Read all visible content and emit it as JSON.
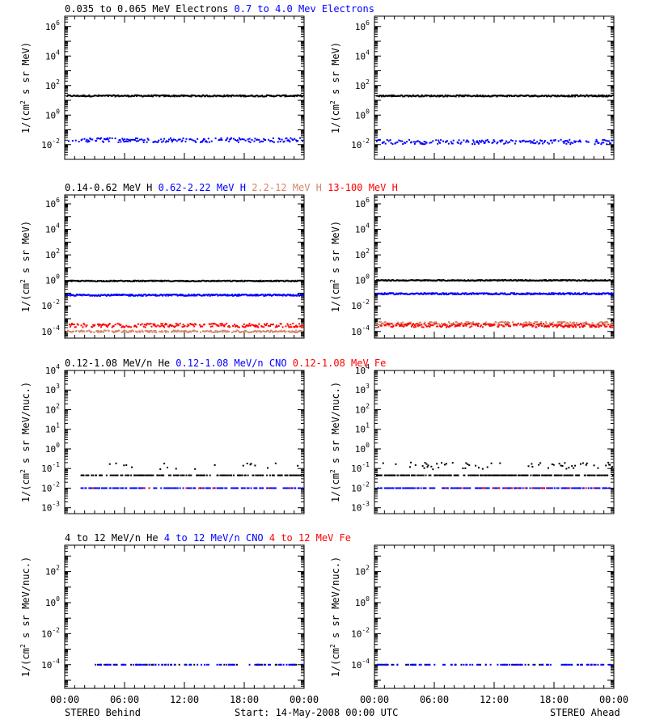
{
  "colors": {
    "black": "#000000",
    "blue": "#0000ff",
    "salmon": "#d2876e",
    "red": "#ff0000",
    "axis": "#000000"
  },
  "footer": {
    "left": "STEREO Behind",
    "center": "Start: 14-May-2008 00:00 UTC",
    "right": "STEREO Ahead"
  },
  "x_ticks": [
    "00:00",
    "06:00",
    "12:00",
    "18:00",
    "00:00"
  ],
  "chart_data": [
    {
      "type": "scatter",
      "row": 1,
      "col": 1,
      "spacecraft": "STEREO Behind",
      "ylabel_base": "1/(cm",
      "ylabel_sup": "2",
      "ylabel_rest": " s sr MeV)",
      "yscale": "log",
      "ylim": [
        0.001,
        5000000
      ],
      "yticks": [
        {
          "e": -2
        },
        {
          "e": 0
        },
        {
          "e": 2
        },
        {
          "e": 4
        },
        {
          "e": 6
        }
      ],
      "legend": [
        {
          "label": "0.035 to 0.065 MeV Electrons",
          "color": "black"
        },
        {
          "label": "0.7 to 4.0 Mev Electrons",
          "color": "blue"
        }
      ],
      "series": [
        {
          "name": "0.035 to 0.065 MeV Electrons",
          "color": "black",
          "level": 20,
          "spread": 0.05,
          "density": 1.0,
          "gap": 0
        },
        {
          "name": "0.7 to 4.0 Mev Electrons",
          "color": "blue",
          "level": 0.02,
          "spread": 0.15,
          "density": 0.6,
          "gap": 0
        }
      ]
    },
    {
      "type": "scatter",
      "row": 1,
      "col": 2,
      "spacecraft": "STEREO Ahead",
      "ylabel_base": "1/(cm",
      "ylabel_sup": "2",
      "ylabel_rest": " s sr MeV)",
      "yscale": "log",
      "ylim": [
        0.001,
        5000000
      ],
      "yticks": [
        {
          "e": -2
        },
        {
          "e": 0
        },
        {
          "e": 2
        },
        {
          "e": 4
        },
        {
          "e": 6
        }
      ],
      "legend": [],
      "series": [
        {
          "name": "0.035 to 0.065 MeV Electrons",
          "color": "black",
          "level": 20,
          "spread": 0.05,
          "density": 1.0,
          "gap": 0
        },
        {
          "name": "0.7 to 4.0 Mev Electrons",
          "color": "blue",
          "level": 0.015,
          "spread": 0.15,
          "density": 0.6,
          "gap": 0
        }
      ]
    },
    {
      "type": "scatter",
      "row": 2,
      "col": 1,
      "spacecraft": "STEREO Behind",
      "ylabel_base": "1/(cm",
      "ylabel_sup": "2",
      "ylabel_rest": " s sr MeV)",
      "yscale": "log",
      "ylim": [
        3e-05,
        5000000
      ],
      "yticks": [
        {
          "e": -4
        },
        {
          "e": -2
        },
        {
          "e": 0
        },
        {
          "e": 2
        },
        {
          "e": 4
        },
        {
          "e": 6
        }
      ],
      "legend": [
        {
          "label": "0.14-0.62 MeV H",
          "color": "black"
        },
        {
          "label": "0.62-2.22 MeV H",
          "color": "blue"
        },
        {
          "label": "2.2-12 MeV H",
          "color": "salmon"
        },
        {
          "label": "13-100 MeV H",
          "color": "red"
        }
      ],
      "series": [
        {
          "name": "0.14-0.62 MeV H",
          "color": "black",
          "level": 0.9,
          "spread": 0.04,
          "density": 1.0,
          "gap": 0
        },
        {
          "name": "0.62-2.22 MeV H",
          "color": "blue",
          "level": 0.07,
          "spread": 0.06,
          "density": 1.0,
          "gap": 0
        },
        {
          "name": "2.2-12 MeV H",
          "color": "salmon",
          "level": 0.0001,
          "spread": 0.08,
          "density": 0.8,
          "gap": 0
        },
        {
          "name": "13-100 MeV H",
          "color": "red",
          "level": 0.0003,
          "spread": 0.15,
          "density": 0.7,
          "gap": 0
        }
      ]
    },
    {
      "type": "scatter",
      "row": 2,
      "col": 2,
      "spacecraft": "STEREO Ahead",
      "ylabel_base": "1/(cm",
      "ylabel_sup": "2",
      "ylabel_rest": " s sr MeV)",
      "yscale": "log",
      "ylim": [
        3e-05,
        5000000
      ],
      "yticks": [
        {
          "e": -4
        },
        {
          "e": -2
        },
        {
          "e": 0
        },
        {
          "e": 2
        },
        {
          "e": 4
        },
        {
          "e": 6
        }
      ],
      "legend": [],
      "series": [
        {
          "name": "0.14-0.62 MeV H",
          "color": "black",
          "level": 1.0,
          "spread": 0.04,
          "density": 1.0,
          "gap": 0
        },
        {
          "name": "0.62-2.22 MeV H",
          "color": "blue",
          "level": 0.09,
          "spread": 0.06,
          "density": 1.0,
          "gap": 0
        },
        {
          "name": "2.2-12 MeV H",
          "color": "salmon",
          "level": 0.0004,
          "spread": 0.15,
          "density": 0.8,
          "gap": 0
        },
        {
          "name": "13-100 MeV H",
          "color": "red",
          "level": 0.0003,
          "spread": 0.15,
          "density": 0.7,
          "gap": 0
        }
      ]
    },
    {
      "type": "scatter",
      "row": 3,
      "col": 1,
      "spacecraft": "STEREO Behind",
      "ylabel_base": "1/(cm",
      "ylabel_sup": "2",
      "ylabel_rest": " s sr MeV/nuc.)",
      "yscale": "log",
      "ylim": [
        0.0005,
        10000
      ],
      "yticks": [
        {
          "e": -3
        },
        {
          "e": -2
        },
        {
          "e": -1
        },
        {
          "e": 0
        },
        {
          "e": 1
        },
        {
          "e": 2
        },
        {
          "e": 3
        },
        {
          "e": 4
        }
      ],
      "legend": [
        {
          "label": "0.12-1.08 MeV/n He",
          "color": "black"
        },
        {
          "label": "0.12-1.08 MeV/n CNO",
          "color": "blue"
        },
        {
          "label": "0.12-1.08 MeV Fe",
          "color": "red"
        }
      ],
      "series": [
        {
          "name": "0.12-1.08 MeV/n He",
          "color": "black",
          "level": 0.045,
          "spread": 0.0,
          "density": 0.55,
          "gap": 0.06,
          "outliers": 0.1
        },
        {
          "name": "0.12-1.08 MeV/n CNO",
          "color": "blue",
          "level": 0.01,
          "spread": 0.0,
          "density": 0.45,
          "gap": 0.06
        },
        {
          "name": "0.12-1.08 MeV Fe",
          "color": "red",
          "level": 0.01,
          "spread": 0.0,
          "density": 0.04,
          "gap": 0.06
        }
      ]
    },
    {
      "type": "scatter",
      "row": 3,
      "col": 2,
      "spacecraft": "STEREO Ahead",
      "ylabel_base": "1/(cm",
      "ylabel_sup": "2",
      "ylabel_rest": " s sr MeV/nuc.)",
      "yscale": "log",
      "ylim": [
        0.0005,
        10000
      ],
      "yticks": [
        {
          "e": -3
        },
        {
          "e": -2
        },
        {
          "e": -1
        },
        {
          "e": 0
        },
        {
          "e": 1
        },
        {
          "e": 2
        },
        {
          "e": 3
        },
        {
          "e": 4
        }
      ],
      "legend": [],
      "series": [
        {
          "name": "0.12-1.08 MeV/n He",
          "color": "black",
          "level": 0.045,
          "spread": 0.0,
          "density": 0.85,
          "gap": 0,
          "outliers": 0.2
        },
        {
          "name": "0.12-1.08 MeV/n CNO",
          "color": "blue",
          "level": 0.01,
          "spread": 0.0,
          "density": 0.5,
          "gap": 0
        },
        {
          "name": "0.12-1.08 MeV Fe",
          "color": "red",
          "level": 0.01,
          "spread": 0.0,
          "density": 0.06,
          "gap": 0
        }
      ]
    },
    {
      "type": "scatter",
      "row": 4,
      "col": 1,
      "spacecraft": "STEREO Behind",
      "ylabel_base": "1/(cm",
      "ylabel_sup": "2",
      "ylabel_rest": " s sr MeV/nuc.)",
      "yscale": "log",
      "ylim": [
        3e-06,
        5000
      ],
      "yticks": [
        {
          "e": -4
        },
        {
          "e": -2
        },
        {
          "e": 0
        },
        {
          "e": 2
        }
      ],
      "legend": [
        {
          "label": "4 to 12 MeV/n He",
          "color": "black"
        },
        {
          "label": "4 to 12 MeV/n CNO",
          "color": "blue"
        },
        {
          "label": "4 to 12 MeV Fe",
          "color": "red"
        }
      ],
      "series": [
        {
          "name": "4 to 12 MeV/n He",
          "color": "black",
          "level": 0.0001,
          "spread": 0.0,
          "density": 0.12,
          "gap": 0.12
        },
        {
          "name": "4 to 12 MeV/n CNO",
          "color": "blue",
          "level": 0.0001,
          "spread": 0.0,
          "density": 0.3,
          "gap": 0.12
        }
      ]
    },
    {
      "type": "scatter",
      "row": 4,
      "col": 2,
      "spacecraft": "STEREO Ahead",
      "ylabel_base": "1/(cm",
      "ylabel_sup": "2",
      "ylabel_rest": " s sr MeV/nuc.)",
      "yscale": "log",
      "ylim": [
        3e-06,
        5000
      ],
      "yticks": [
        {
          "e": -4
        },
        {
          "e": -2
        },
        {
          "e": 0
        },
        {
          "e": 2
        }
      ],
      "legend": [],
      "series": [
        {
          "name": "4 to 12 MeV/n He",
          "color": "black",
          "level": 0.0001,
          "spread": 0.0,
          "density": 0.08,
          "gap": 0
        },
        {
          "name": "4 to 12 MeV/n CNO",
          "color": "blue",
          "level": 0.0001,
          "spread": 0.0,
          "density": 0.3,
          "gap": 0
        }
      ]
    }
  ]
}
